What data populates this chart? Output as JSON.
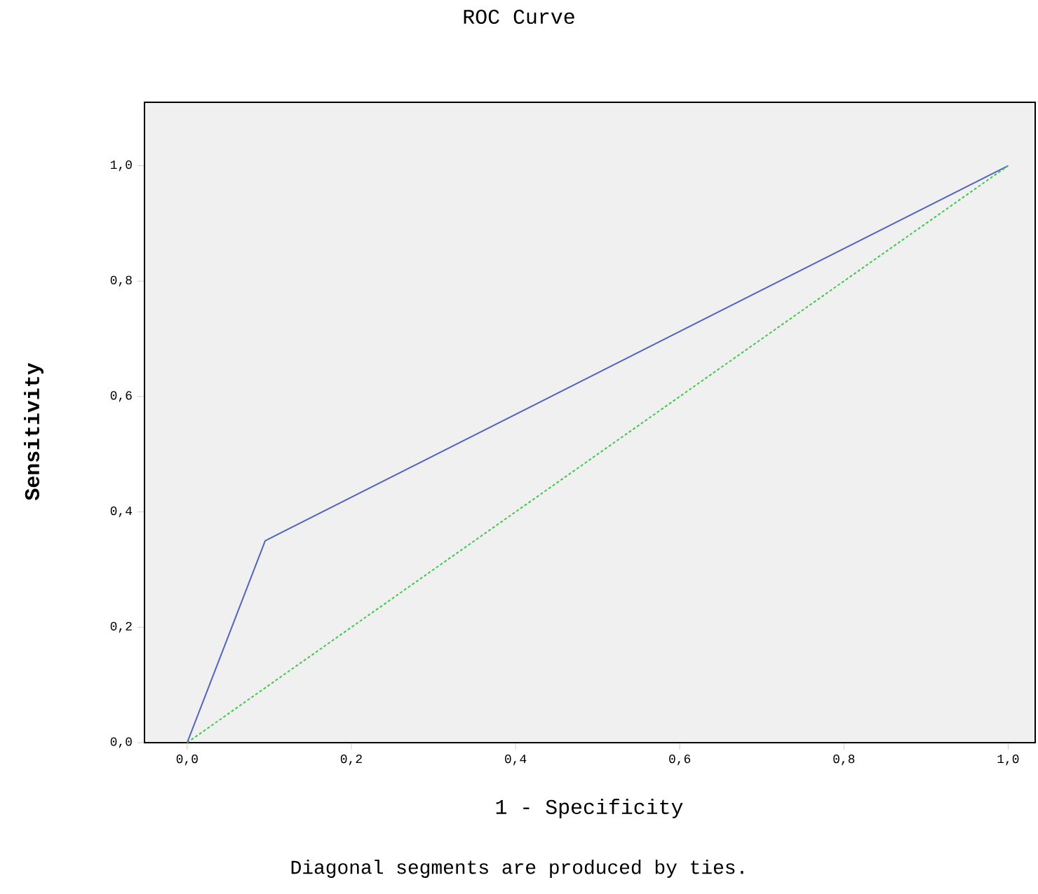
{
  "chart_data": {
    "type": "line",
    "title": "ROC Curve",
    "xlabel": "1 - Specificity",
    "ylabel": "Sensitivity",
    "annotations": [
      "Diagonal segments are produced by ties."
    ],
    "series": [
      {
        "x": [
          0,
          0.095,
          1
        ],
        "values": [
          0,
          0.35,
          1
        ],
        "color": "#5363c0",
        "line_style": "solid"
      },
      {
        "x": [
          0,
          1
        ],
        "values": [
          0,
          1
        ],
        "color": "#3fc84a",
        "line_style": "dashed"
      }
    ],
    "xlim": [
      -0.052,
      1.033
    ],
    "ylim": [
      0,
      1.11
    ],
    "xticks": [
      {
        "value": 0,
        "label": "0,0"
      },
      {
        "value": 0.2,
        "label": "0,2"
      },
      {
        "value": 0.4,
        "label": "0,4"
      },
      {
        "value": 0.6,
        "label": "0,6"
      },
      {
        "value": 0.8,
        "label": "0,8"
      },
      {
        "value": 1,
        "label": "1,0"
      }
    ],
    "yticks": [
      {
        "value": 0,
        "label": "0,0"
      },
      {
        "value": 0.2,
        "label": "0,2"
      },
      {
        "value": 0.4,
        "label": "0,4"
      },
      {
        "value": 0.6,
        "label": "0,6"
      },
      {
        "value": 0.8,
        "label": "0,8"
      },
      {
        "value": 1,
        "label": "1,0"
      }
    ],
    "grid": false,
    "marker": "none"
  }
}
